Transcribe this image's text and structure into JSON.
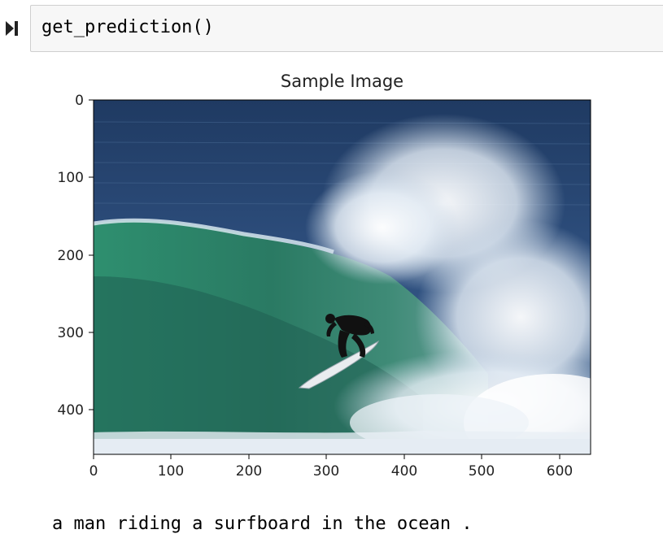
{
  "cell": {
    "code": "get_prediction()",
    "run_icon": "run-step-icon"
  },
  "figure": {
    "title": "Sample Image",
    "x_ticks": [
      "0",
      "100",
      "200",
      "300",
      "400",
      "500",
      "600"
    ],
    "y_ticks": [
      "0",
      "100",
      "200",
      "300",
      "400"
    ],
    "x_range": [
      0,
      640
    ],
    "y_range": [
      0,
      458
    ],
    "image_subject": "surfer riding a breaking wave"
  },
  "output": {
    "caption": "a man riding a surfboard in the ocean ."
  }
}
